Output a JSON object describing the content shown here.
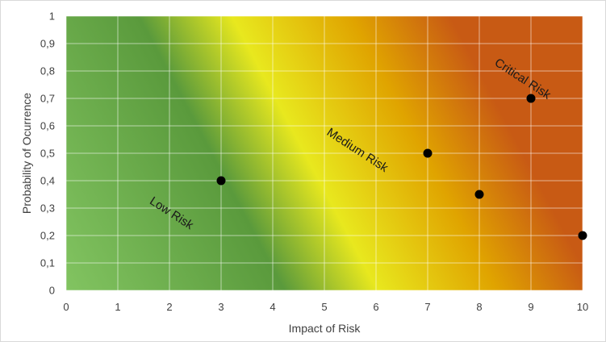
{
  "chart_data": {
    "type": "scatter",
    "title": "",
    "xlabel": "Impact of Risk",
    "ylabel": "Probability of Ocurrence",
    "xlim": [
      0,
      10
    ],
    "ylim": [
      0,
      1
    ],
    "x_ticks": [
      "0",
      "1",
      "2",
      "3",
      "4",
      "5",
      "6",
      "7",
      "8",
      "9",
      "10"
    ],
    "y_ticks": [
      "0",
      "0,1",
      "0,2",
      "0,3",
      "0,4",
      "0,5",
      "0,6",
      "0,7",
      "0,8",
      "0,9",
      "1"
    ],
    "grid": true,
    "legend": "none",
    "points": [
      {
        "x": 3,
        "y": 0.4
      },
      {
        "x": 7,
        "y": 0.5
      },
      {
        "x": 8,
        "y": 0.35
      },
      {
        "x": 9,
        "y": 0.7
      },
      {
        "x": 10,
        "y": 0.2
      }
    ],
    "marker_color": "#000000",
    "zones": [
      {
        "label": "Low Risk",
        "x": 2,
        "y": 0.27
      },
      {
        "label": "Medium Risk",
        "x": 5.6,
        "y": 0.5
      },
      {
        "label": "Critical Risk",
        "x": 8.8,
        "y": 0.76
      }
    ],
    "gradient_colors": {
      "low": "#82c461",
      "low_dark": "#5a9a3c",
      "medium": "#e8e81e",
      "high": "#e0a400",
      "critical": "#c85a14"
    }
  }
}
